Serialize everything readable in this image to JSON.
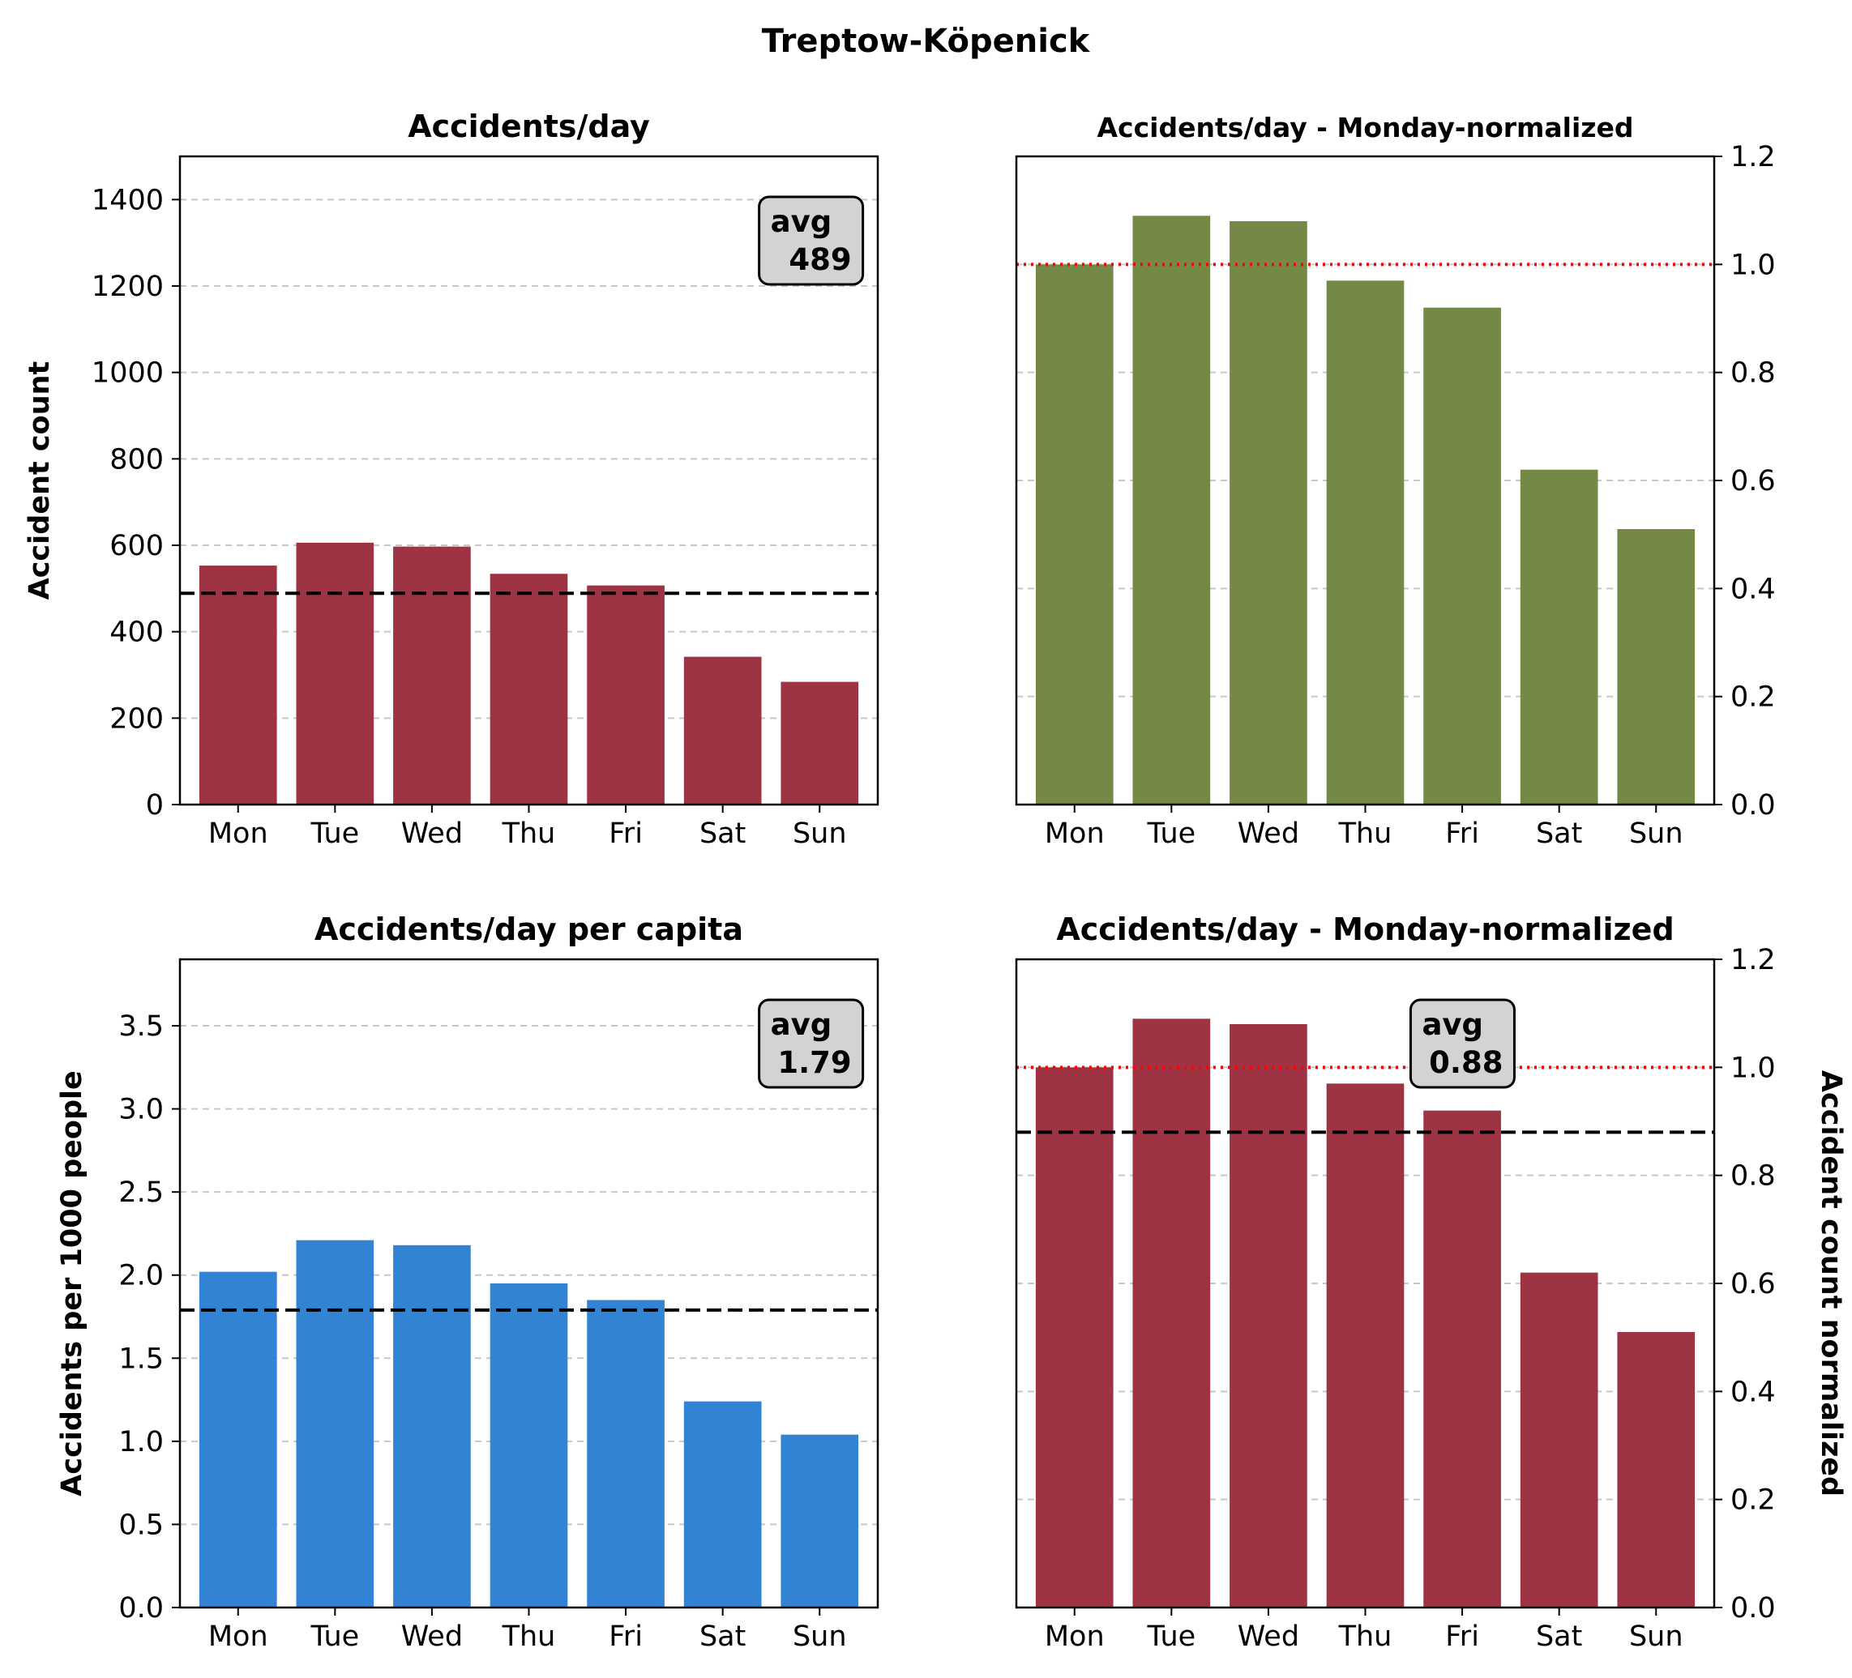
{
  "suptitle": "Treptow-Köpenick",
  "colors": {
    "maroon": "#9e3443",
    "olive": "#748945",
    "blue": "#3383d4",
    "avg_line": "#000000",
    "ref_line": "#ff0000",
    "grid": "#c8c8c8",
    "badge_fill": "#d3d3d3"
  },
  "chart_data": [
    {
      "type": "bar",
      "title": "Accidents/day",
      "ylabel": "Accident count",
      "categories": [
        "Mon",
        "Tue",
        "Wed",
        "Thu",
        "Fri",
        "Sat",
        "Sun"
      ],
      "values": [
        553,
        606,
        597,
        534,
        507,
        342,
        284
      ],
      "ylim": [
        0,
        1500
      ],
      "yticks": [
        0,
        200,
        400,
        600,
        800,
        1000,
        1200,
        1400
      ],
      "tick_labels": [
        "0",
        "200",
        "400",
        "600",
        "800",
        "1000",
        "1200",
        "1400"
      ],
      "grid": "y dashed",
      "yaxis_side": "left",
      "bar_color": "#9e3443",
      "average": 489,
      "avg_label": "avg\n489",
      "reference_line": null
    },
    {
      "type": "bar",
      "title": "Accidents/day - Monday-normalized",
      "ylabel": "",
      "categories": [
        "Mon",
        "Tue",
        "Wed",
        "Thu",
        "Fri",
        "Sat",
        "Sun"
      ],
      "values": [
        1.0,
        1.09,
        1.08,
        0.97,
        0.92,
        0.62,
        0.51
      ],
      "ylim": [
        0,
        1.2
      ],
      "yticks": [
        0,
        0.2,
        0.4,
        0.6,
        0.8,
        1.0,
        1.2
      ],
      "tick_labels": [
        "0.0",
        "0.2",
        "0.4",
        "0.6",
        "0.8",
        "1.0",
        "1.2"
      ],
      "grid": "y dashed",
      "yaxis_side": "right",
      "bar_color": "#748945",
      "average": null,
      "avg_label": null,
      "reference_line": 1.0
    },
    {
      "type": "bar",
      "title": "Accidents/day per capita",
      "ylabel": "Accidents per 1000 people",
      "categories": [
        "Mon",
        "Tue",
        "Wed",
        "Thu",
        "Fri",
        "Sat",
        "Sun"
      ],
      "values": [
        2.02,
        2.21,
        2.18,
        1.95,
        1.85,
        1.24,
        1.04
      ],
      "ylim": [
        0,
        3.9
      ],
      "yticks": [
        0,
        0.5,
        1.0,
        1.5,
        2.0,
        2.5,
        3.0,
        3.5
      ],
      "tick_labels": [
        "0.0",
        "0.5",
        "1.0",
        "1.5",
        "2.0",
        "2.5",
        "3.0",
        "3.5"
      ],
      "grid": "y dashed",
      "yaxis_side": "left",
      "bar_color": "#3383d4",
      "average": 1.79,
      "avg_label": "avg\n1.79",
      "reference_line": null
    },
    {
      "type": "bar",
      "title": "Accidents/day - Monday-normalized",
      "ylabel": "Accident count normalized",
      "categories": [
        "Mon",
        "Tue",
        "Wed",
        "Thu",
        "Fri",
        "Sat",
        "Sun"
      ],
      "values": [
        1.0,
        1.09,
        1.08,
        0.97,
        0.92,
        0.62,
        0.51
      ],
      "ylim": [
        0,
        1.2
      ],
      "yticks": [
        0,
        0.2,
        0.4,
        0.6,
        0.8,
        1.0,
        1.2
      ],
      "tick_labels": [
        "0.0",
        "0.2",
        "0.4",
        "0.6",
        "0.8",
        "1.0",
        "1.2"
      ],
      "grid": "y dashed",
      "yaxis_side": "right",
      "bar_color": "#9e3443",
      "average": 0.88,
      "avg_label": "avg\n0.88",
      "reference_line": 1.0
    }
  ]
}
